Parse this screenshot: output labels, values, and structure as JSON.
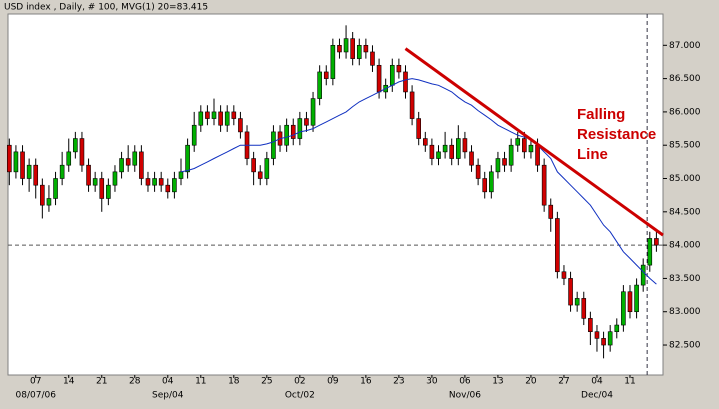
{
  "chart_data": {
    "type": "candlestick",
    "title": "USD index , Daily, # 100, MVG(1) 20=83.415",
    "xlim": [
      -0.2,
      99
    ],
    "ylim": [
      82.05,
      87.47
    ],
    "yticks": [
      {
        "value": 82.5,
        "label": "82.500"
      },
      {
        "value": 83,
        "label": "83.000"
      },
      {
        "value": 83.5,
        "label": "83.500"
      },
      {
        "value": 84,
        "label": "84.000"
      },
      {
        "value": 84.5,
        "label": "84.500"
      },
      {
        "value": 85,
        "label": "85.000"
      },
      {
        "value": 85.5,
        "label": "85.500"
      },
      {
        "value": 86,
        "label": "86.000"
      },
      {
        "value": 86.5,
        "label": "86.500"
      },
      {
        "value": 87,
        "label": "87.000"
      }
    ],
    "xticks": [
      {
        "value": 4,
        "label": "07"
      },
      {
        "value": 9,
        "label": "14"
      },
      {
        "value": 14,
        "label": "21"
      },
      {
        "value": 19,
        "label": "28"
      },
      {
        "value": 24,
        "label": "04"
      },
      {
        "value": 29,
        "label": "11"
      },
      {
        "value": 34,
        "label": "18"
      },
      {
        "value": 39,
        "label": "25"
      },
      {
        "value": 44,
        "label": "02"
      },
      {
        "value": 49,
        "label": "09"
      },
      {
        "value": 54,
        "label": "16"
      },
      {
        "value": 59,
        "label": "23"
      },
      {
        "value": 64,
        "label": "30"
      },
      {
        "value": 69,
        "label": "06"
      },
      {
        "value": 74,
        "label": "13"
      },
      {
        "value": 79,
        "label": "20"
      },
      {
        "value": 84,
        "label": "27"
      },
      {
        "value": 89,
        "label": "04"
      },
      {
        "value": 94,
        "label": "11"
      }
    ],
    "xsublabels": [
      {
        "value": 4,
        "label": "08/07/06"
      },
      {
        "value": 24,
        "label": "Sep/04"
      },
      {
        "value": 44,
        "label": "Oct/02"
      },
      {
        "value": 69,
        "label": "Nov/06"
      },
      {
        "value": 89,
        "label": "Dec/04"
      }
    ],
    "up_color": "#00b000",
    "down_color": "#d00000",
    "open": [
      85.5,
      85.1,
      85.4,
      85.0,
      85.2,
      84.9,
      84.6,
      84.7,
      85.0,
      85.2,
      85.4,
      85.6,
      85.2,
      84.9,
      85.0,
      84.7,
      84.9,
      85.1,
      85.3,
      85.2,
      85.4,
      85.0,
      84.9,
      85.0,
      84.9,
      84.8,
      85.0,
      85.1,
      85.5,
      85.8,
      86.0,
      85.9,
      86.0,
      85.8,
      86.0,
      85.9,
      85.7,
      85.3,
      85.1,
      85.0,
      85.3,
      85.7,
      85.5,
      85.8,
      85.6,
      85.9,
      85.8,
      86.2,
      86.6,
      86.5,
      87.0,
      86.9,
      87.1,
      86.8,
      87.0,
      86.9,
      86.7,
      86.3,
      86.4,
      86.7,
      86.6,
      86.3,
      85.9,
      85.6,
      85.5,
      85.3,
      85.4,
      85.5,
      85.3,
      85.6,
      85.4,
      85.2,
      85.0,
      84.8,
      85.1,
      85.3,
      85.2,
      85.5,
      85.6,
      85.4,
      85.5,
      85.2,
      84.6,
      84.4,
      83.6,
      83.5,
      83.1,
      83.2,
      82.9,
      82.7,
      82.6,
      82.5,
      82.7,
      82.8,
      83.3,
      83.0,
      83.4,
      83.7,
      84.1
    ],
    "high": [
      85.6,
      85.5,
      85.5,
      85.3,
      85.3,
      85.0,
      84.9,
      85.1,
      85.4,
      85.6,
      85.7,
      85.7,
      85.3,
      85.1,
      85.1,
      85.0,
      85.2,
      85.4,
      85.5,
      85.5,
      85.5,
      85.1,
      85.1,
      85.1,
      85.0,
      85.1,
      85.3,
      85.6,
      86.0,
      86.1,
      86.1,
      86.2,
      86.1,
      86.1,
      86.1,
      86.0,
      85.8,
      85.4,
      85.2,
      85.4,
      85.8,
      85.8,
      85.9,
      85.9,
      86.0,
      86.0,
      86.3,
      86.7,
      86.7,
      87.1,
      87.1,
      87.3,
      87.2,
      87.1,
      87.1,
      87.0,
      86.8,
      86.5,
      86.8,
      86.8,
      86.7,
      86.4,
      86.0,
      85.7,
      85.6,
      85.5,
      85.7,
      85.6,
      85.8,
      85.7,
      85.5,
      85.3,
      85.1,
      85.2,
      85.4,
      85.4,
      85.6,
      85.7,
      85.7,
      85.6,
      85.6,
      85.3,
      84.7,
      84.5,
      83.7,
      83.6,
      83.3,
      83.3,
      83.0,
      82.8,
      82.7,
      82.8,
      82.9,
      83.4,
      83.4,
      83.5,
      83.8,
      84.2,
      84.2
    ],
    "low": [
      84.9,
      85.0,
      84.9,
      84.8,
      84.7,
      84.4,
      84.5,
      84.6,
      84.9,
      85.1,
      85.3,
      85.1,
      84.8,
      84.8,
      84.5,
      84.6,
      84.8,
      85.0,
      85.1,
      85.1,
      84.9,
      84.8,
      84.8,
      84.8,
      84.7,
      84.7,
      84.9,
      85.0,
      85.4,
      85.7,
      85.8,
      85.8,
      85.7,
      85.7,
      85.8,
      85.6,
      85.2,
      84.9,
      84.9,
      84.9,
      85.2,
      85.4,
      85.4,
      85.5,
      85.5,
      85.7,
      85.7,
      86.1,
      86.4,
      86.4,
      86.8,
      86.8,
      86.7,
      86.7,
      86.8,
      86.6,
      86.2,
      86.2,
      86.3,
      86.5,
      86.2,
      85.8,
      85.5,
      85.4,
      85.2,
      85.2,
      85.3,
      85.2,
      85.2,
      85.3,
      85.1,
      84.9,
      84.7,
      84.7,
      85.0,
      85.1,
      85.1,
      85.4,
      85.3,
      85.3,
      85.1,
      84.5,
      84.2,
      83.5,
      83.4,
      83.0,
      83.0,
      82.8,
      82.5,
      82.4,
      82.3,
      82.4,
      82.6,
      82.7,
      82.9,
      82.9,
      83.3,
      83.6,
      83.9
    ],
    "close": [
      85.1,
      85.4,
      85.0,
      85.2,
      84.9,
      84.6,
      84.7,
      85.0,
      85.2,
      85.4,
      85.6,
      85.2,
      84.9,
      85.0,
      84.7,
      84.9,
      85.1,
      85.3,
      85.2,
      85.4,
      85.0,
      84.9,
      85.0,
      84.9,
      84.8,
      85.0,
      85.1,
      85.5,
      85.8,
      86.0,
      85.9,
      86.0,
      85.8,
      86.0,
      85.9,
      85.7,
      85.3,
      85.1,
      85.0,
      85.3,
      85.7,
      85.5,
      85.8,
      85.6,
      85.9,
      85.8,
      86.2,
      86.6,
      86.5,
      87.0,
      86.9,
      87.1,
      86.8,
      87.0,
      86.9,
      86.7,
      86.3,
      86.4,
      86.7,
      86.6,
      86.3,
      85.9,
      85.6,
      85.5,
      85.3,
      85.4,
      85.5,
      85.3,
      85.6,
      85.4,
      85.2,
      85.0,
      84.8,
      85.1,
      85.3,
      85.2,
      85.5,
      85.6,
      85.4,
      85.5,
      85.2,
      84.6,
      84.4,
      83.6,
      83.5,
      83.1,
      83.2,
      82.9,
      82.7,
      82.6,
      82.5,
      82.7,
      82.8,
      83.3,
      83.0,
      83.4,
      83.7,
      84.1,
      84.0
    ],
    "ma": {
      "color": "#1030c0",
      "values": [
        null,
        null,
        null,
        null,
        null,
        null,
        null,
        null,
        null,
        null,
        null,
        null,
        null,
        null,
        null,
        null,
        null,
        null,
        null,
        null,
        null,
        null,
        null,
        null,
        null,
        null,
        85.1,
        85.12,
        85.15,
        85.2,
        85.25,
        85.3,
        85.35,
        85.4,
        85.45,
        85.5,
        85.5,
        85.5,
        85.5,
        85.52,
        85.55,
        85.6,
        85.62,
        85.65,
        85.7,
        85.72,
        85.75,
        85.8,
        85.85,
        85.9,
        85.95,
        86.0,
        86.08,
        86.15,
        86.2,
        86.25,
        86.3,
        86.35,
        86.4,
        86.45,
        86.48,
        86.5,
        86.48,
        86.45,
        86.42,
        86.4,
        86.35,
        86.3,
        86.22,
        86.15,
        86.1,
        86.02,
        85.95,
        85.88,
        85.8,
        85.75,
        85.7,
        85.65,
        85.62,
        85.6,
        85.5,
        85.4,
        85.3,
        85.1,
        85.0,
        84.9,
        84.8,
        84.7,
        84.6,
        84.45,
        84.3,
        84.2,
        84.05,
        83.9,
        83.8,
        83.7,
        83.6,
        83.5,
        83.415
      ]
    },
    "level_line": 84.0,
    "cursor_x": 96.6,
    "trendline": {
      "color": "#cc0000",
      "x": [
        60,
        99
      ],
      "y": [
        86.95,
        84.15
      ]
    },
    "annotation": [
      "Falling",
      "Resistance",
      "Line"
    ]
  }
}
